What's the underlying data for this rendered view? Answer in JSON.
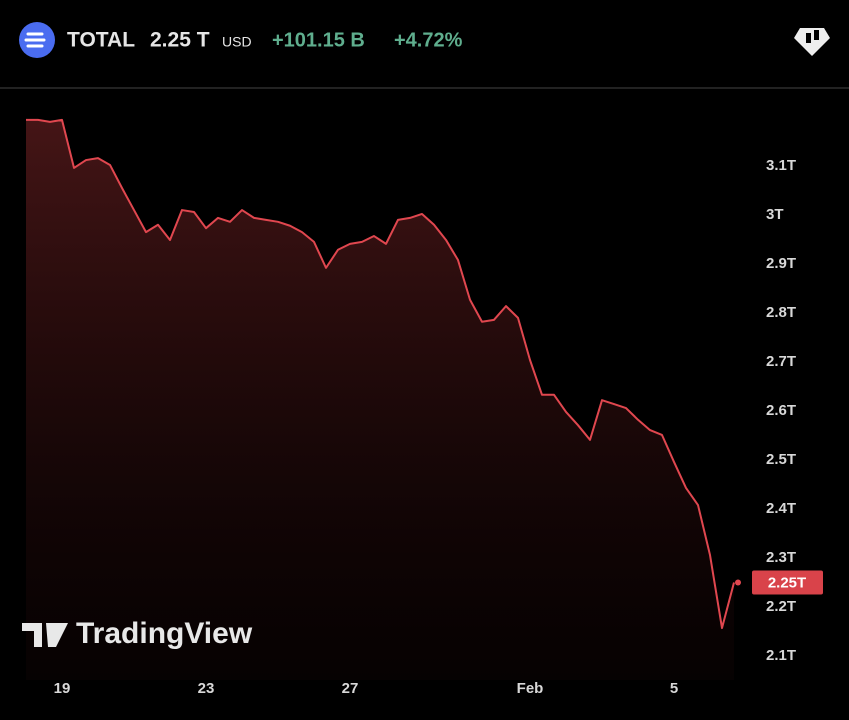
{
  "header": {
    "symbol": "TOTAL",
    "price": "2.25 T",
    "currency": "USD",
    "change": "+101.15 B",
    "change_pct": "+4.72%"
  },
  "watermark": "TradingView",
  "chart_data": {
    "type": "area",
    "color": "#e0474f",
    "categories": [
      null,
      null,
      null,
      "19",
      null,
      null,
      null,
      null,
      null,
      null,
      null,
      null,
      null,
      null,
      null,
      "23",
      null,
      null,
      null,
      null,
      null,
      null,
      null,
      null,
      null,
      null,
      null,
      "27",
      null,
      null,
      null,
      null,
      null,
      null,
      null,
      null,
      null,
      null,
      null,
      null,
      null,
      null,
      "Feb",
      null,
      null,
      null,
      null,
      null,
      null,
      null,
      null,
      null,
      null,
      null,
      "5",
      null,
      null,
      null,
      null,
      null
    ],
    "values": [
      3.194,
      3.194,
      3.19,
      3.194,
      3.096,
      3.112,
      3.116,
      3.102,
      3.055,
      3.01,
      2.965,
      2.98,
      2.949,
      3.01,
      3.006,
      2.973,
      2.994,
      2.986,
      3.01,
      2.994,
      2.99,
      2.986,
      2.978,
      2.965,
      2.945,
      2.892,
      2.929,
      2.941,
      2.945,
      2.957,
      2.941,
      2.99,
      2.994,
      3.002,
      2.98,
      2.949,
      2.908,
      2.827,
      2.782,
      2.786,
      2.814,
      2.79,
      2.704,
      2.633,
      2.633,
      2.598,
      2.571,
      2.541,
      2.622,
      2.614,
      2.606,
      2.582,
      2.561,
      2.551,
      2.496,
      2.443,
      2.408,
      2.306,
      2.157,
      2.25
    ],
    "ylim": [
      2.051,
      3.255
    ],
    "yticks": [
      {
        "value": 2.1,
        "label": "2.1T"
      },
      {
        "value": 2.2,
        "label": "2.2T"
      },
      {
        "value": 2.3,
        "label": "2.3T"
      },
      {
        "value": 2.4,
        "label": "2.4T"
      },
      {
        "value": 2.5,
        "label": "2.5T"
      },
      {
        "value": 2.6,
        "label": "2.6T"
      },
      {
        "value": 2.7,
        "label": "2.7T"
      },
      {
        "value": 2.8,
        "label": "2.8T"
      },
      {
        "value": 2.9,
        "label": "2.9T"
      },
      {
        "value": 3,
        "label": "3T"
      },
      {
        "value": 3.1,
        "label": "3.1T"
      }
    ],
    "price_tag": {
      "value": 2.25,
      "label": "2.25T"
    },
    "grid": false
  }
}
